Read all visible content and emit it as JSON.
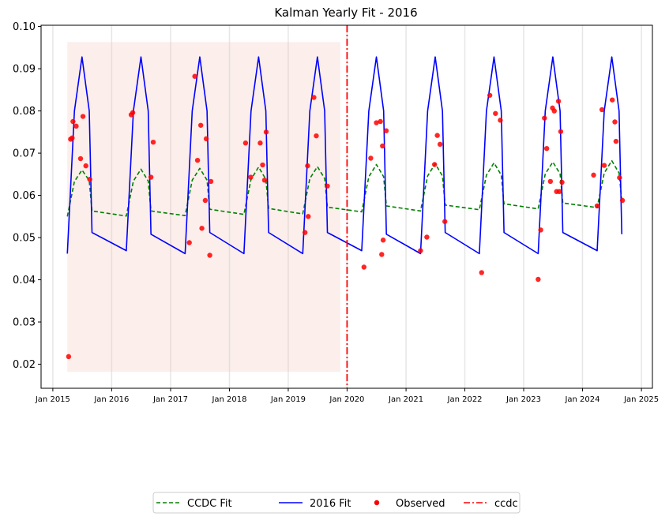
{
  "chart_data": {
    "type": "line",
    "title": "Kalman Yearly Fit - 2016",
    "xlabel": "",
    "ylabel": "",
    "xlim": [
      "2014-10-20",
      "2025-03-10"
    ],
    "ylim": [
      0.0143,
      0.1003
    ],
    "x_ticks": [
      "Jan 2015",
      "Jan 2016",
      "Jan 2017",
      "Jan 2018",
      "Jan 2019",
      "Jan 2020",
      "Jan 2021",
      "Jan 2022",
      "Jan 2023",
      "Jan 2024",
      "Jan 2025"
    ],
    "y_ticks": [
      "0.02",
      "0.03",
      "0.04",
      "0.05",
      "0.06",
      "0.07",
      "0.08",
      "0.09",
      "0.10"
    ],
    "grid": "vertical at year boundaries",
    "legend_position": "bottom-center, below plot",
    "shaded_region": {
      "x": [
        "2015-04-01",
        "2019-11-20"
      ],
      "y": [
        0.0182,
        0.0963
      ],
      "color": "#f2c6bd"
    },
    "ccdc_break": {
      "name": "ccdc",
      "date": "2020-01-01",
      "color": "#ff0000"
    },
    "series": [
      {
        "name": "CCDC Fit",
        "color": "#008000",
        "style": "dashed",
        "points": [
          [
            "2015-04-01",
            0.055
          ],
          [
            "2015-05-15",
            0.0633
          ],
          [
            "2015-07-01",
            0.066
          ],
          [
            "2015-08-15",
            0.0635
          ],
          [
            "2015-09-01",
            0.0563
          ],
          [
            "2016-04-01",
            0.0551
          ],
          [
            "2016-05-15",
            0.0634
          ],
          [
            "2016-07-01",
            0.0662
          ],
          [
            "2016-08-15",
            0.0634
          ],
          [
            "2016-09-01",
            0.0563
          ],
          [
            "2017-04-01",
            0.0552
          ],
          [
            "2017-05-15",
            0.0636
          ],
          [
            "2017-07-01",
            0.0664
          ],
          [
            "2017-08-15",
            0.0636
          ],
          [
            "2017-09-01",
            0.0567
          ],
          [
            "2018-04-01",
            0.0555
          ],
          [
            "2018-05-15",
            0.0638
          ],
          [
            "2018-07-01",
            0.0667
          ],
          [
            "2018-08-15",
            0.0638
          ],
          [
            "2018-09-01",
            0.0569
          ],
          [
            "2019-04-01",
            0.0556
          ],
          [
            "2019-05-15",
            0.064
          ],
          [
            "2019-07-01",
            0.0668
          ],
          [
            "2019-08-15",
            0.064
          ],
          [
            "2019-09-01",
            0.0572
          ],
          [
            "2020-04-01",
            0.0561
          ],
          [
            "2020-05-15",
            0.0644
          ],
          [
            "2020-07-01",
            0.0673
          ],
          [
            "2020-08-15",
            0.0644
          ],
          [
            "2020-09-01",
            0.0575
          ],
          [
            "2021-04-01",
            0.0563
          ],
          [
            "2021-05-15",
            0.0646
          ],
          [
            "2021-07-01",
            0.0675
          ],
          [
            "2021-08-15",
            0.0646
          ],
          [
            "2021-09-01",
            0.0577
          ],
          [
            "2022-04-01",
            0.0566
          ],
          [
            "2022-05-15",
            0.0648
          ],
          [
            "2022-07-01",
            0.0677
          ],
          [
            "2022-08-15",
            0.0648
          ],
          [
            "2022-09-01",
            0.058
          ],
          [
            "2023-04-01",
            0.0568
          ],
          [
            "2023-05-15",
            0.0651
          ],
          [
            "2023-07-01",
            0.0679
          ],
          [
            "2023-08-15",
            0.0651
          ],
          [
            "2023-09-01",
            0.0582
          ],
          [
            "2024-04-01",
            0.0571
          ],
          [
            "2024-05-15",
            0.0653
          ],
          [
            "2024-07-01",
            0.0682
          ],
          [
            "2024-08-15",
            0.0653
          ],
          [
            "2024-09-01",
            0.0588
          ]
        ]
      },
      {
        "name": "2016 Fit",
        "color": "#0000ff",
        "style": "solid",
        "points": [
          [
            "2015-04-01",
            0.0462
          ],
          [
            "2015-05-15",
            0.08
          ],
          [
            "2015-07-01",
            0.0928
          ],
          [
            "2015-08-15",
            0.08
          ],
          [
            "2015-09-01",
            0.0512
          ],
          [
            "2016-04-01",
            0.0469
          ],
          [
            "2016-05-15",
            0.08
          ],
          [
            "2016-07-01",
            0.0928
          ],
          [
            "2016-08-15",
            0.08
          ],
          [
            "2016-09-01",
            0.0508
          ],
          [
            "2017-04-01",
            0.0462
          ],
          [
            "2017-05-15",
            0.08
          ],
          [
            "2017-07-01",
            0.0928
          ],
          [
            "2017-08-15",
            0.08
          ],
          [
            "2017-09-01",
            0.0512
          ],
          [
            "2018-04-01",
            0.0462
          ],
          [
            "2018-05-15",
            0.08
          ],
          [
            "2018-07-01",
            0.0928
          ],
          [
            "2018-08-15",
            0.08
          ],
          [
            "2018-09-01",
            0.0512
          ],
          [
            "2019-04-01",
            0.0462
          ],
          [
            "2019-05-15",
            0.08
          ],
          [
            "2019-07-01",
            0.0928
          ],
          [
            "2019-08-15",
            0.08
          ],
          [
            "2019-09-01",
            0.0512
          ],
          [
            "2020-04-01",
            0.0469
          ],
          [
            "2020-05-15",
            0.08
          ],
          [
            "2020-07-01",
            0.0928
          ],
          [
            "2020-08-15",
            0.08
          ],
          [
            "2020-09-01",
            0.0508
          ],
          [
            "2021-04-01",
            0.0462
          ],
          [
            "2021-05-15",
            0.08
          ],
          [
            "2021-07-01",
            0.0928
          ],
          [
            "2021-08-15",
            0.08
          ],
          [
            "2021-09-01",
            0.0512
          ],
          [
            "2022-04-01",
            0.0462
          ],
          [
            "2022-05-15",
            0.08
          ],
          [
            "2022-07-01",
            0.0928
          ],
          [
            "2022-08-15",
            0.08
          ],
          [
            "2022-09-01",
            0.0512
          ],
          [
            "2023-04-01",
            0.0462
          ],
          [
            "2023-05-15",
            0.08
          ],
          [
            "2023-07-01",
            0.0928
          ],
          [
            "2023-08-15",
            0.08
          ],
          [
            "2023-09-01",
            0.0512
          ],
          [
            "2024-04-01",
            0.0469
          ],
          [
            "2024-05-15",
            0.08
          ],
          [
            "2024-07-01",
            0.0928
          ],
          [
            "2024-08-15",
            0.08
          ],
          [
            "2024-09-01",
            0.0508
          ]
        ]
      },
      {
        "name": "Observed",
        "color": "#ff0000",
        "style": "markers",
        "points": [
          [
            "2015-04-09",
            0.0218
          ],
          [
            "2015-04-21",
            0.0733
          ],
          [
            "2015-05-01",
            0.0736
          ],
          [
            "2015-05-06",
            0.0775
          ],
          [
            "2015-05-26",
            0.0764
          ],
          [
            "2015-06-22",
            0.0687
          ],
          [
            "2015-07-07",
            0.0787
          ],
          [
            "2015-07-25",
            0.067
          ],
          [
            "2015-08-18",
            0.0638
          ],
          [
            "2016-05-01",
            0.0791
          ],
          [
            "2016-05-11",
            0.0796
          ],
          [
            "2016-09-01",
            0.0643
          ],
          [
            "2016-09-15",
            0.0726
          ],
          [
            "2017-04-27",
            0.0488
          ],
          [
            "2017-05-31",
            0.0882
          ],
          [
            "2017-06-17",
            0.0683
          ],
          [
            "2017-07-07",
            0.0766
          ],
          [
            "2017-07-14",
            0.0522
          ],
          [
            "2017-08-04",
            0.0588
          ],
          [
            "2017-08-10",
            0.0734
          ],
          [
            "2017-09-01",
            0.0458
          ],
          [
            "2017-09-08",
            0.0633
          ],
          [
            "2018-04-11",
            0.0724
          ],
          [
            "2018-05-13",
            0.0643
          ],
          [
            "2018-07-11",
            0.0724
          ],
          [
            "2018-07-26",
            0.0672
          ],
          [
            "2018-08-07",
            0.0636
          ],
          [
            "2018-08-17",
            0.075
          ],
          [
            "2019-04-15",
            0.0512
          ],
          [
            "2019-05-01",
            0.067
          ],
          [
            "2019-05-05",
            0.055
          ],
          [
            "2019-06-09",
            0.0832
          ],
          [
            "2019-06-24",
            0.0741
          ],
          [
            "2019-09-01",
            0.0622
          ],
          [
            "2020-04-15",
            0.043
          ],
          [
            "2020-05-27",
            0.0688
          ],
          [
            "2020-07-01",
            0.0772
          ],
          [
            "2020-07-26",
            0.0775
          ],
          [
            "2020-08-03",
            0.046
          ],
          [
            "2020-08-08",
            0.0717
          ],
          [
            "2020-08-12",
            0.0494
          ],
          [
            "2020-08-31",
            0.0753
          ],
          [
            "2021-04-01",
            0.0469
          ],
          [
            "2021-05-10",
            0.0501
          ],
          [
            "2021-06-27",
            0.0673
          ],
          [
            "2021-07-14",
            0.0742
          ],
          [
            "2021-07-31",
            0.0721
          ],
          [
            "2021-08-30",
            0.0538
          ],
          [
            "2022-04-15",
            0.0417
          ],
          [
            "2022-06-05",
            0.0837
          ],
          [
            "2022-07-10",
            0.0794
          ],
          [
            "2022-08-09",
            0.0778
          ],
          [
            "2023-04-01",
            0.0401
          ],
          [
            "2023-04-17",
            0.0518
          ],
          [
            "2023-05-10",
            0.0783
          ],
          [
            "2023-05-24",
            0.0711
          ],
          [
            "2023-06-16",
            0.0633
          ],
          [
            "2023-06-29",
            0.0807
          ],
          [
            "2023-07-10",
            0.08
          ],
          [
            "2023-07-24",
            0.0609
          ],
          [
            "2023-08-05",
            0.0823
          ],
          [
            "2023-08-10",
            0.0609
          ],
          [
            "2023-08-19",
            0.0751
          ],
          [
            "2023-08-27",
            0.0631
          ],
          [
            "2024-03-10",
            0.0648
          ],
          [
            "2024-04-01",
            0.0575
          ],
          [
            "2024-05-01",
            0.0803
          ],
          [
            "2024-05-15",
            0.0671
          ],
          [
            "2024-07-04",
            0.0826
          ],
          [
            "2024-07-20",
            0.0774
          ],
          [
            "2024-07-27",
            0.0728
          ],
          [
            "2024-08-18",
            0.0642
          ],
          [
            "2024-09-05",
            0.0588
          ]
        ]
      }
    ],
    "legend": [
      {
        "label": "CCDC Fit",
        "color": "#008000",
        "style": "dashed"
      },
      {
        "label": "2016 Fit",
        "color": "#0000ff",
        "style": "solid"
      },
      {
        "label": "Observed",
        "color": "#ff0000",
        "style": "marker"
      },
      {
        "label": "ccdc",
        "color": "#ff0000",
        "style": "dashdot"
      }
    ]
  }
}
